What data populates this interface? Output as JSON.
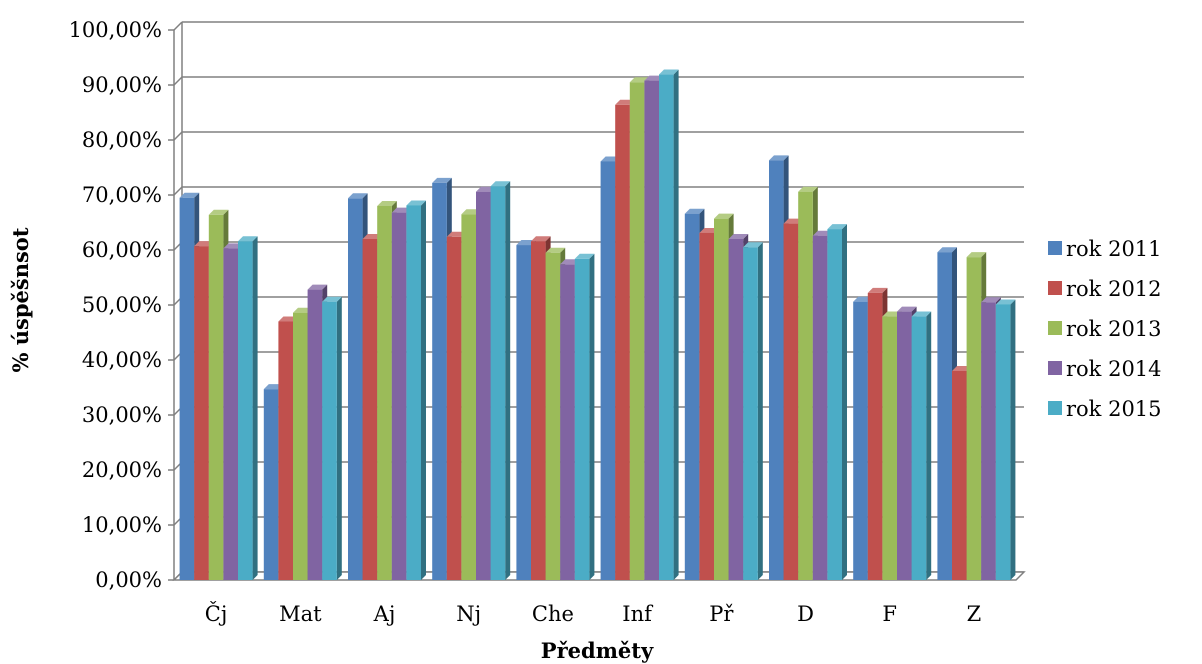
{
  "chart_data": {
    "type": "bar",
    "title": "",
    "xlabel": "Předměty",
    "ylabel": "% úspěšnsot",
    "ylim": [
      0,
      100
    ],
    "y_ticks": [
      "0,00%",
      "10,00%",
      "20,00%",
      "30,00%",
      "40,00%",
      "50,00%",
      "60,00%",
      "70,00%",
      "80,00%",
      "90,00%",
      "100,00%"
    ],
    "grid": true,
    "legend_position": "right",
    "categories": [
      "Čj",
      "Mat",
      "Aj",
      "Nj",
      "Che",
      "Inf",
      "Př",
      "D",
      "F",
      "Z"
    ],
    "series": [
      {
        "name": "rok 2011",
        "color": "#4F81BD",
        "values": [
          69.5,
          34.7,
          69.4,
          72.2,
          60.9,
          76.1,
          66.6,
          76.3,
          50.6,
          59.6
        ]
      },
      {
        "name": "rok 2012",
        "color": "#C0504D",
        "values": [
          60.7,
          47.0,
          62.0,
          62.4,
          61.6,
          86.4,
          63.1,
          64.8,
          52.2,
          38.0
        ]
      },
      {
        "name": "rok 2013",
        "color": "#9BBB59",
        "values": [
          66.4,
          48.6,
          68.0,
          66.5,
          59.5,
          90.5,
          65.7,
          70.6,
          47.9,
          58.7
        ]
      },
      {
        "name": "rok 2014",
        "color": "#8064A2",
        "values": [
          60.3,
          52.8,
          66.8,
          70.6,
          57.4,
          90.8,
          62.0,
          62.6,
          48.8,
          50.5
        ]
      },
      {
        "name": "rok 2015",
        "color": "#4BACC6",
        "values": [
          61.6,
          50.6,
          68.1,
          71.6,
          58.4,
          91.9,
          60.5,
          63.8,
          47.9,
          50.1
        ]
      }
    ]
  }
}
